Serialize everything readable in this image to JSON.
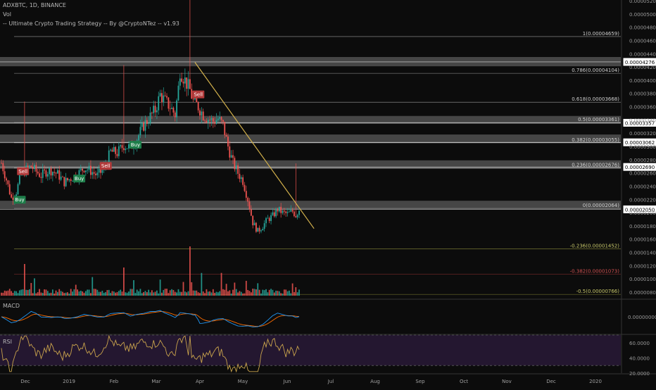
{
  "header": {
    "symbol_line": "ADXBTC, 1D, BINANCE",
    "volume_label": "Vol",
    "strategy_label": "-- Ultimate Crypto Trading Strategy -- By @CryptoNTez -- v1.93"
  },
  "panes": {
    "macd_label": "MACD",
    "rsi_label": "RSI"
  },
  "colors": {
    "up": "#26a69a",
    "down": "#ef5350",
    "trendline": "#d4b24c",
    "price_line": "#ffffff",
    "zone": "#5a5a5a",
    "macd": "#2196f3",
    "signal": "#ff6d00",
    "rsi": "#c9a34c",
    "rsi_bg": "#241730"
  },
  "chart_data": [
    {
      "type": "candlestick",
      "title": "ADXBTC, 1D, BINANCE",
      "x_tick_labels": [
        "Dec",
        "2019",
        "Feb",
        "Mar",
        "Apr",
        "May",
        "Jun",
        "Jul",
        "Aug",
        "Sep",
        "Oct",
        "Nov",
        "Dec",
        "2020"
      ],
      "y_tick_labels": [
        "0.00005200",
        "0.00005000",
        "0.00004800",
        "0.00004600",
        "0.00004400",
        "0.00004200",
        "0.00004000",
        "0.00003800",
        "0.00003600",
        "0.00003400",
        "0.00003200",
        "0.00003000",
        "0.00002800",
        "0.00002600",
        "0.00002400",
        "0.00002200",
        "0.00002000",
        "0.00001800",
        "0.00001600",
        "0.00001400",
        "0.00001200",
        "0.00001000",
        "0.00000800"
      ],
      "ylim": [
        7.8e-06,
        5.25e-05
      ],
      "close_path": [
        [
          0,
          2.75e-05
        ],
        [
          3,
          2.5e-05
        ],
        [
          6,
          2.22e-05
        ],
        [
          9,
          2.32e-05
        ],
        [
          12,
          2.58e-05
        ],
        [
          15,
          2.65e-05
        ],
        [
          18,
          2.7e-05
        ],
        [
          21,
          2.62e-05
        ],
        [
          24,
          2.56e-05
        ],
        [
          27,
          2.62e-05
        ],
        [
          30,
          2.64e-05
        ],
        [
          34,
          2.58e-05
        ],
        [
          38,
          2.46e-05
        ],
        [
          42,
          2.52e-05
        ],
        [
          46,
          2.58e-05
        ],
        [
          50,
          2.68e-05
        ],
        [
          54,
          2.63e-05
        ],
        [
          58,
          2.56e-05
        ],
        [
          62,
          2.66e-05
        ],
        [
          66,
          2.92e-05
        ],
        [
          70,
          2.9e-05
        ],
        [
          74,
          3.02e-05
        ],
        [
          78,
          2.98e-05
        ],
        [
          82,
          3.12e-05
        ],
        [
          86,
          3.32e-05
        ],
        [
          90,
          3.45e-05
        ],
        [
          93,
          3.55e-05
        ],
        [
          96,
          3.78e-05
        ],
        [
          99,
          3.68e-05
        ],
        [
          102,
          3.6e-05
        ],
        [
          105,
          3.48e-05
        ],
        [
          107,
          3.88e-05
        ],
        [
          108,
          4.15e-05
        ],
        [
          110,
          4.05e-05
        ],
        [
          112,
          3.95e-05
        ],
        [
          114,
          3.85e-05
        ],
        [
          116,
          3.68e-05
        ],
        [
          119,
          3.6e-05
        ],
        [
          122,
          3.48e-05
        ],
        [
          125,
          3.42e-05
        ],
        [
          128,
          3.38e-05
        ],
        [
          131,
          3.42e-05
        ],
        [
          134,
          3.32e-05
        ],
        [
          137,
          3e-05
        ],
        [
          140,
          2.75e-05
        ],
        [
          143,
          2.6e-05
        ],
        [
          146,
          2.48e-05
        ],
        [
          149,
          2.2e-05
        ],
        [
          152,
          1.85e-05
        ],
        [
          155,
          1.72e-05
        ],
        [
          158,
          1.8e-05
        ],
        [
          161,
          1.9e-05
        ],
        [
          164,
          1.95e-05
        ],
        [
          167,
          2.05e-05
        ],
        [
          170,
          2e-05
        ],
        [
          173,
          1.98e-05
        ],
        [
          176,
          2.02e-05
        ],
        [
          178,
          1.96e-05
        ],
        [
          180,
          2.05e-05
        ]
      ],
      "labels": [
        {
          "day": 12,
          "price": 2.62e-05,
          "text": "Sell",
          "kind": "sell"
        },
        {
          "day": 10,
          "price": 2.19e-05,
          "text": "Buy",
          "kind": "buy"
        },
        {
          "day": 62,
          "price": 2.7e-05,
          "text": "Sell",
          "kind": "sell"
        },
        {
          "day": 46,
          "price": 2.51e-05,
          "text": "Buy",
          "kind": "buy"
        },
        {
          "day": 80,
          "price": 3.02e-05,
          "text": "Buy",
          "kind": "buy"
        },
        {
          "day": 118,
          "price": 3.78e-05,
          "text": "Sell",
          "kind": "sell"
        }
      ],
      "fib_levels": [
        {
          "price": 4.659e-05,
          "text": "1(0.00004659)"
        },
        {
          "price": 4.104e-05,
          "text": "0.786(0.00004104)"
        },
        {
          "price": 3.668e-05,
          "text": "0.618(0.00003668)"
        },
        {
          "price": 3.361e-05,
          "text": "0.5(0.00003361)"
        },
        {
          "price": 3.055e-05,
          "text": "0.382(0.00003055)"
        },
        {
          "price": 2.676e-05,
          "text": "0.236(0.00002676)"
        },
        {
          "price": 2.064e-05,
          "text": "0(0.00002064)"
        },
        {
          "price": 1.452e-05,
          "text": "-0.236(0.00001452)"
        },
        {
          "price": 1.073e-05,
          "text": "-0.382(0.00001073)"
        },
        {
          "price": 7.66e-06,
          "text": "-0.5(0.00000766)"
        }
      ],
      "price_boxes": [
        "0.00004276",
        "0.00003357",
        "0.00003062",
        "0.00002690",
        "0.00002050"
      ],
      "zones": [
        [
          4.21e-05,
          4.35e-05
        ],
        [
          3.34e-05,
          3.46e-05
        ],
        [
          3.05e-05,
          3.18e-05
        ],
        [
          2.66e-05,
          2.79e-05
        ],
        [
          2.05e-05,
          2.18e-05
        ]
      ]
    },
    {
      "type": "line",
      "title": "MACD",
      "y_tick_labels": [
        "0.00000000"
      ],
      "series": [
        {
          "name": "MACD"
        },
        {
          "name": "Signal"
        }
      ]
    },
    {
      "type": "line",
      "title": "RSI",
      "y_tick_labels": [
        "60.0000",
        "40.0000",
        "20.0000"
      ],
      "ylim": [
        20,
        70
      ],
      "series": [
        {
          "name": "RSI"
        }
      ]
    }
  ]
}
